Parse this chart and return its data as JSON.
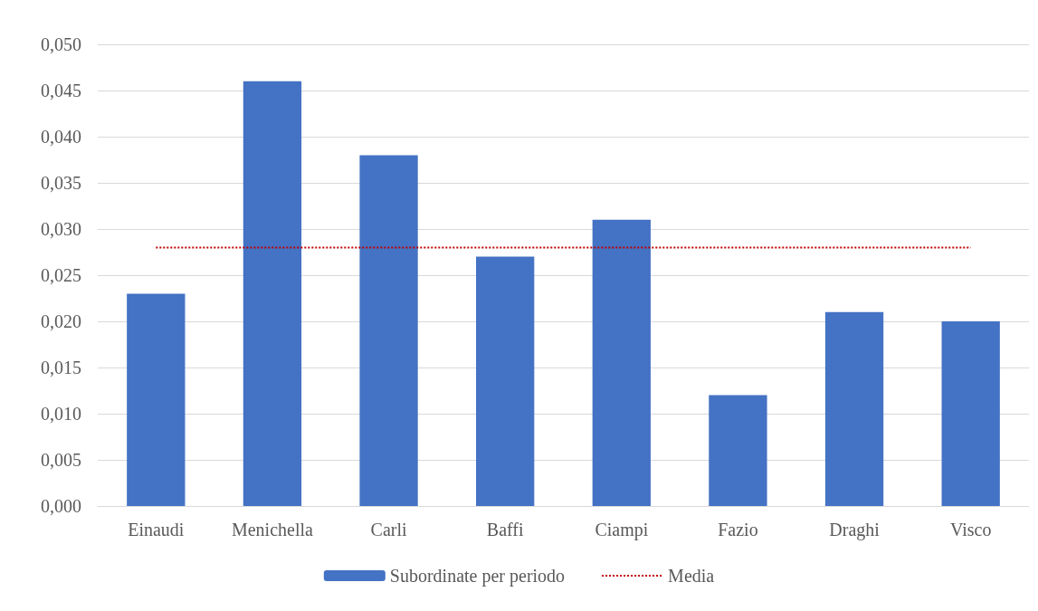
{
  "chart_data": {
    "type": "bar",
    "categories": [
      "Einaudi",
      "Menichella",
      "Carli",
      "Baffi",
      "Ciampi",
      "Fazio",
      "Draghi",
      "Visco"
    ],
    "series": [
      {
        "name": "Subordinate per periodo",
        "color": "#4472c4",
        "values": [
          0.023,
          0.046,
          0.038,
          0.027,
          0.031,
          0.012,
          0.021,
          0.02
        ]
      },
      {
        "name": "Media",
        "type": "line",
        "color": "#c00000",
        "line_style": "dotted",
        "marker": "none",
        "values": [
          0.028,
          0.028,
          0.028,
          0.028,
          0.028,
          0.028,
          0.028,
          0.028
        ]
      }
    ],
    "ylim": [
      0,
      0.05
    ],
    "yticks": [
      {
        "value": 0,
        "label": "0,000"
      },
      {
        "value": 0.005,
        "label": "0,005"
      },
      {
        "value": 0.01,
        "label": "0,010"
      },
      {
        "value": 0.015,
        "label": "0,015"
      },
      {
        "value": 0.02,
        "label": "0,020"
      },
      {
        "value": 0.025,
        "label": "0,025"
      },
      {
        "value": 0.03,
        "label": "0,030"
      },
      {
        "value": 0.035,
        "label": "0,035"
      },
      {
        "value": 0.04,
        "label": "0,040"
      },
      {
        "value": 0.045,
        "label": "0,045"
      },
      {
        "value": 0.05,
        "label": "0,050"
      }
    ],
    "grid": "y",
    "legend": "bottom"
  }
}
